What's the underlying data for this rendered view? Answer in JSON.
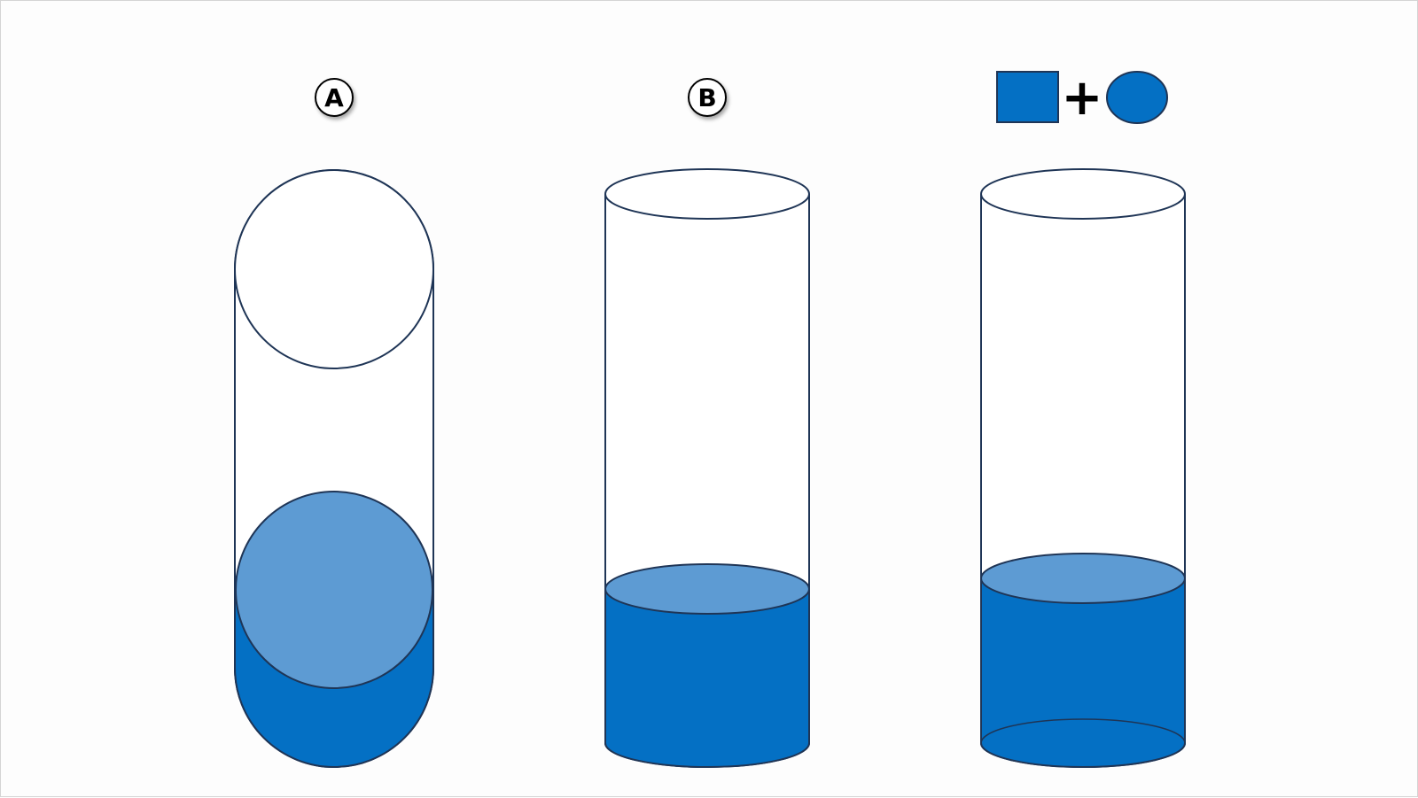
{
  "labels": {
    "a": "A",
    "b": "B",
    "plus": "+"
  },
  "colors": {
    "fill_dark": "#0470c4",
    "fill_light": "#5d9bd3",
    "outline": "#1f3556",
    "background": "#fdfdfd",
    "vessel_face": "#ffffff"
  }
}
